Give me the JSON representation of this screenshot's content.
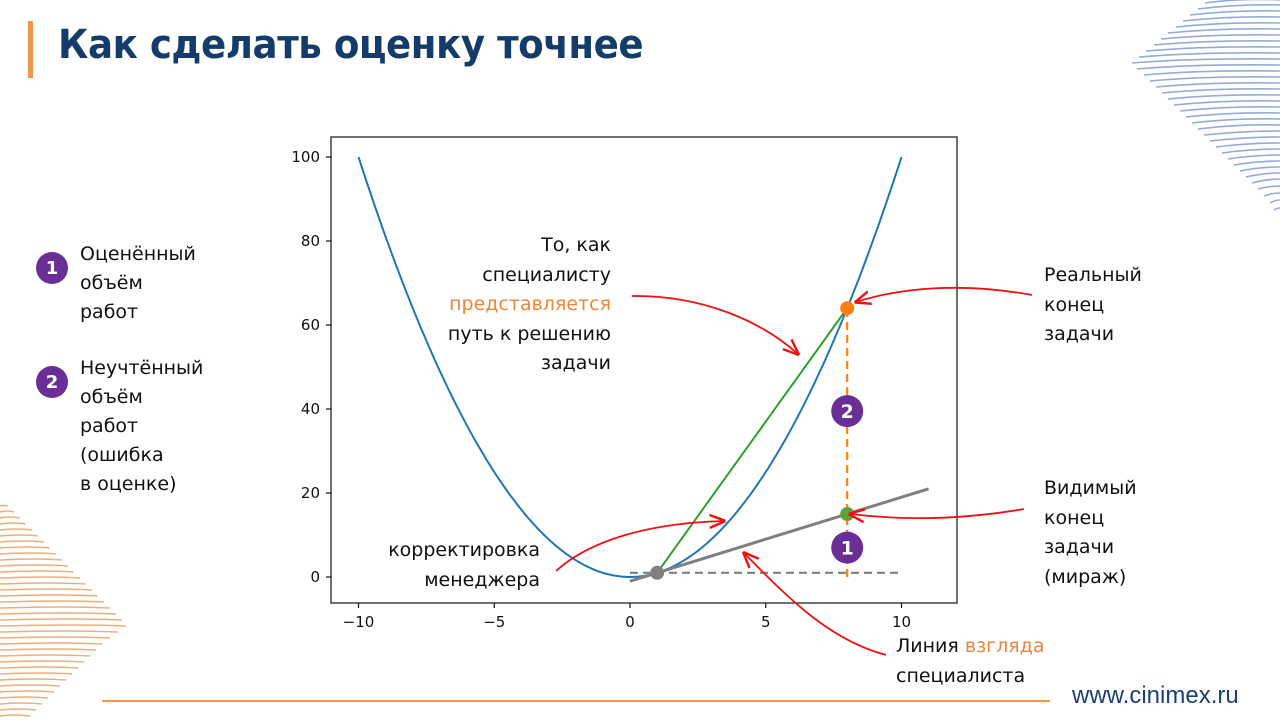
{
  "header": {
    "title": "Как сделать оценку точнее"
  },
  "legend": {
    "items": [
      {
        "number": "1",
        "lines": [
          "Оценённый",
          "объём",
          "работ"
        ]
      },
      {
        "number": "2",
        "lines": [
          "Неучтённый",
          "объём",
          "работ",
          "(ошибка",
          "в оценке)"
        ]
      }
    ]
  },
  "annotations": {
    "specialist_path": {
      "l1": "То, как",
      "l2": "специалисту",
      "l3_orange": "представляется",
      "l4": "путь к решению",
      "l5": "задачи"
    },
    "real_end": {
      "l1": "Реальный",
      "l2": "конец",
      "l3": "задачи"
    },
    "visible_end": {
      "l1": "Видимый",
      "l2": "конец",
      "l3": "задачи",
      "l4": "(мираж)"
    },
    "manager_correction": {
      "l1": "корректировка",
      "l2": "менеджера"
    },
    "line_of_sight": {
      "l1_a": "Линия ",
      "l1_orange": "взгляда",
      "l2": "специалиста"
    }
  },
  "footer": {
    "url": "www.cinimex.ru"
  },
  "colors": {
    "title": "#143c6b",
    "accent_orange": "#f0954a",
    "badge_purple": "#6a2f97",
    "parabola_blue": "#1f77b4",
    "green_line": "#2ca02c",
    "gray_line": "#7f7f7f",
    "orange_marker": "#ff7f0e",
    "green_marker": "#5ea13a",
    "arrow_red": "#ee1111"
  },
  "chart_data": {
    "type": "line",
    "title": "",
    "xlabel": "",
    "ylabel": "",
    "xlim": [
      -11,
      12
    ],
    "ylim": [
      -6,
      105
    ],
    "xticks": [
      -10,
      -5,
      0,
      5,
      10
    ],
    "yticks": [
      0,
      20,
      40,
      60,
      80,
      100
    ],
    "xtick_labels": [
      "−10",
      "−5",
      "0",
      "5",
      "10"
    ],
    "ytick_labels": [
      "0",
      "20",
      "40",
      "60",
      "80",
      "100"
    ],
    "grid": false,
    "legend": null,
    "series": [
      {
        "name": "parabola y=x^2",
        "type": "line",
        "color": "#1f77b4",
        "x": [
          -10,
          -8,
          -6,
          -4,
          -2,
          0,
          2,
          4,
          6,
          8,
          10
        ],
        "y": [
          100,
          64,
          36,
          16,
          4,
          0,
          4,
          16,
          36,
          64,
          100
        ]
      },
      {
        "name": "line of sight (tangent at x=1)",
        "type": "line",
        "color": "#7f7f7f",
        "x": [
          0,
          11
        ],
        "y": [
          -1,
          21
        ]
      },
      {
        "name": "imagined path",
        "type": "line",
        "color": "#2ca02c",
        "x": [
          1,
          8
        ],
        "y": [
          1,
          64
        ]
      },
      {
        "name": "baseline",
        "type": "dashed",
        "color": "#7f7f7f",
        "x": [
          0,
          10
        ],
        "y": [
          1,
          1
        ]
      },
      {
        "name": "error span",
        "type": "dashed",
        "color": "#ff7f0e",
        "x": [
          8,
          8
        ],
        "y": [
          0,
          64
        ]
      }
    ],
    "points": [
      {
        "name": "start",
        "x": 1,
        "y": 1,
        "color": "#7f7f7f"
      },
      {
        "name": "real end",
        "x": 8,
        "y": 64,
        "color": "#ff7f0e"
      },
      {
        "name": "visible end (mirage)",
        "x": 8,
        "y": 15,
        "color": "#5ea13a"
      }
    ],
    "badges": [
      {
        "label": "1",
        "x": 8,
        "y": 7
      },
      {
        "label": "2",
        "x": 8,
        "y": 39.5
      }
    ]
  }
}
